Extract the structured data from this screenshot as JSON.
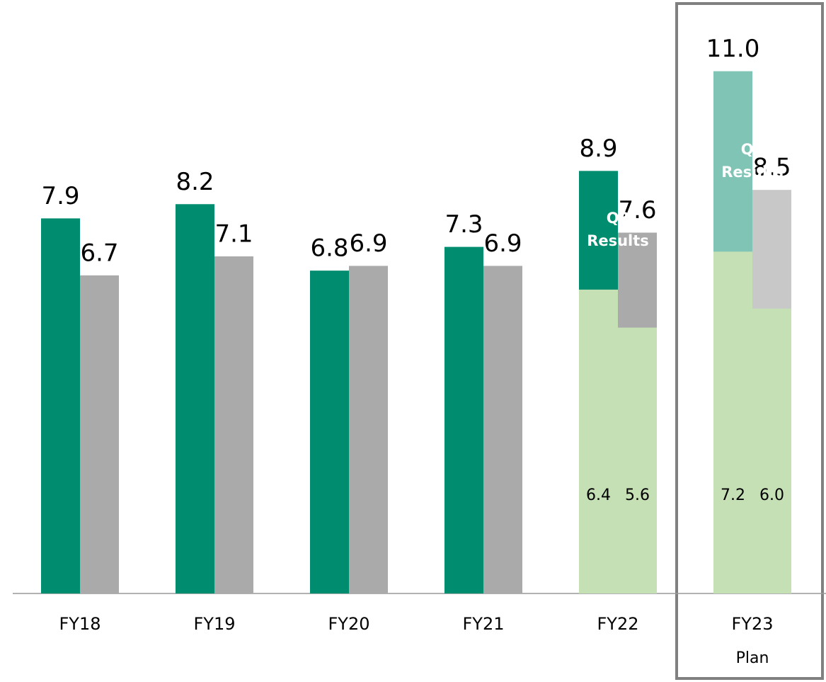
{
  "chart_data": {
    "type": "bar",
    "categories": [
      "FY18",
      "FY19",
      "FY20",
      "FY21",
      "FY22",
      "FY23"
    ],
    "plan_label": "Plan",
    "annotation": "Q3 Results",
    "series": [
      {
        "color": "#008c6e",
        "colors": [
          "#008c6e",
          "#008c6e",
          "#008c6e",
          "#008c6e",
          "#008c6e",
          "#80c4b6"
        ],
        "values": [
          7.9,
          8.2,
          6.8,
          7.3,
          8.9,
          11.0
        ],
        "value_labels": [
          "7.9",
          "8.2",
          "6.8",
          "7.3",
          "8.9",
          "11.0"
        ]
      },
      {
        "color": "#aaaaaa",
        "colors": [
          "#aaaaaa",
          "#aaaaaa",
          "#aaaaaa",
          "#aaaaaa",
          "#aaaaaa",
          "#c8c8c8"
        ],
        "values": [
          6.7,
          7.1,
          6.9,
          6.9,
          7.6,
          8.5
        ],
        "value_labels": [
          "6.7",
          "7.1",
          "6.9",
          "6.9",
          "7.6",
          "8.5"
        ]
      }
    ],
    "q3_series": [
      {
        "color": "#c5e0b4",
        "values": [
          null,
          null,
          null,
          null,
          6.4,
          7.2
        ],
        "value_labels": [
          null,
          null,
          null,
          null,
          "6.4",
          "7.2"
        ]
      },
      {
        "color": "#c5e0b4",
        "values": [
          null,
          null,
          null,
          null,
          5.6,
          6.0
        ],
        "value_labels": [
          null,
          null,
          null,
          null,
          "5.6",
          "6.0"
        ]
      }
    ],
    "ylim": [
      0,
      12.5
    ]
  }
}
